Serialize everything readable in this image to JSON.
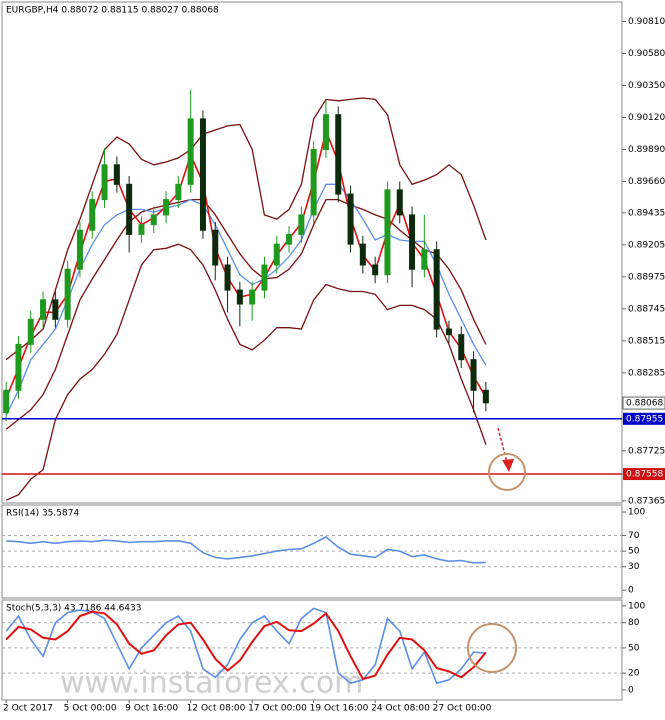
{
  "chart_data": [
    {
      "type": "candlestick",
      "title": "EURGBP,H4  0.88072 0.88115 0.88027 0.88068",
      "categories": [
        "2 Oct 2017",
        null,
        null,
        null,
        null,
        "5 Oct 00:00",
        null,
        null,
        null,
        null,
        "9 Oct 16:00",
        null,
        null,
        null,
        null,
        "12 Oct 08:00",
        null,
        null,
        null,
        null,
        "17 Oct 00:00",
        null,
        null,
        null,
        null,
        "19 Oct 16:00",
        null,
        null,
        null,
        null,
        "24 Oct 08:00",
        null,
        null,
        null,
        null,
        "27 Oct 00:00",
        null,
        null,
        null,
        null
      ],
      "open": [
        0.88,
        0.8816,
        0.8849,
        0.8867,
        0.8881,
        0.8867,
        0.8903,
        0.8931,
        0.8953,
        0.8978,
        0.8964,
        0.8928,
        0.8935,
        0.8942,
        0.8953,
        0.8964,
        0.9011,
        0.8931,
        0.8906,
        0.8888,
        0.8878,
        0.8888,
        0.8906,
        0.8921,
        0.8928,
        0.8942,
        0.8989,
        0.9014,
        0.8957,
        0.8921,
        0.8906,
        0.8899,
        0.896,
        0.8942,
        0.8903,
        0.8917,
        0.886,
        0.8856,
        0.8838,
        0.8816
      ],
      "high": [
        0.8822,
        0.8855,
        0.8873,
        0.8887,
        0.8887,
        0.8909,
        0.8937,
        0.8959,
        0.899,
        0.8984,
        0.897,
        0.8941,
        0.8948,
        0.8959,
        0.897,
        0.9032,
        0.9017,
        0.8937,
        0.8912,
        0.8894,
        0.8894,
        0.8912,
        0.8927,
        0.8934,
        0.8948,
        0.8995,
        0.9025,
        0.902,
        0.8963,
        0.8927,
        0.8912,
        0.8966,
        0.8966,
        0.8948,
        0.8942,
        0.8923,
        0.8866,
        0.8862,
        0.8844,
        0.8822
      ],
      "low": [
        0.8794,
        0.881,
        0.8843,
        0.8861,
        0.8861,
        0.8861,
        0.8897,
        0.8925,
        0.8947,
        0.8958,
        0.8915,
        0.8922,
        0.8929,
        0.8936,
        0.8947,
        0.8958,
        0.8925,
        0.8895,
        0.8872,
        0.8862,
        0.8866,
        0.8882,
        0.89,
        0.8915,
        0.8922,
        0.8936,
        0.8983,
        0.8951,
        0.8915,
        0.89,
        0.8893,
        0.8893,
        0.8936,
        0.889,
        0.8897,
        0.8854,
        0.885,
        0.8832,
        0.88,
        0.8801
      ],
      "close": [
        0.8816,
        0.8849,
        0.8867,
        0.8881,
        0.8867,
        0.8903,
        0.8931,
        0.8953,
        0.8978,
        0.8964,
        0.8928,
        0.8935,
        0.8942,
        0.8953,
        0.8964,
        0.9011,
        0.8931,
        0.8906,
        0.8888,
        0.8878,
        0.8888,
        0.8906,
        0.8921,
        0.8928,
        0.8942,
        0.8989,
        0.9014,
        0.8957,
        0.8921,
        0.8906,
        0.8899,
        0.896,
        0.8942,
        0.8903,
        0.8917,
        0.886,
        0.8856,
        0.8838,
        0.8816,
        0.8807
      ],
      "up_color": "#1f9a1f",
      "down_color": "#0d2a0d",
      "series": [
        {
          "color": "#7a1010",
          "values": [
            0.8838,
            0.8845,
            0.8852,
            0.886,
            0.8888,
            0.8917,
            0.8939,
            0.8964,
            0.8989,
            0.8998,
            0.8993,
            0.8982,
            0.8978,
            0.898,
            0.8983,
            0.8989,
            0.9,
            0.9003,
            0.9006,
            0.9007,
            0.8989,
            0.8942,
            0.8939,
            0.8946,
            0.8964,
            0.9011,
            0.9025,
            0.9024,
            0.9025,
            0.9026,
            0.9025,
            0.9014,
            0.8978,
            0.8964,
            0.8967,
            0.8971,
            0.8978,
            0.8971,
            0.8949,
            0.8924
          ]
        },
        {
          "color": "#7a1010",
          "values": [
            0.8788,
            0.8795,
            0.8802,
            0.8813,
            0.8831,
            0.8856,
            0.8881,
            0.8896,
            0.891,
            0.8924,
            0.8937,
            0.8944,
            0.8947,
            0.8949,
            0.8951,
            0.8953,
            0.8953,
            0.8942,
            0.8928,
            0.8914,
            0.8903,
            0.8896,
            0.8897,
            0.8903,
            0.8914,
            0.8935,
            0.8953,
            0.8953,
            0.8949,
            0.8946,
            0.8942,
            0.8939,
            0.8931,
            0.8924,
            0.8917,
            0.8914,
            0.8903,
            0.8888,
            0.8867,
            0.8849
          ]
        },
        {
          "color": "#7a1010",
          "values": [
            0.8737,
            0.8741,
            0.8752,
            0.8759,
            0.8795,
            0.8813,
            0.8824,
            0.8831,
            0.8842,
            0.8856,
            0.8881,
            0.8906,
            0.8917,
            0.8918,
            0.8921,
            0.8917,
            0.8906,
            0.8888,
            0.8867,
            0.8849,
            0.8845,
            0.8852,
            0.8861,
            0.8861,
            0.886,
            0.8881,
            0.8892,
            0.8889,
            0.8887,
            0.8887,
            0.8885,
            0.8874,
            0.8877,
            0.8877,
            0.8874,
            0.8867,
            0.8849,
            0.8824,
            0.8802,
            0.8777
          ]
        },
        {
          "color": "#5b8fe6",
          "values": [
            0.8798,
            0.8816,
            0.8838,
            0.8849,
            0.886,
            0.8881,
            0.8903,
            0.8921,
            0.8935,
            0.8942,
            0.8946,
            0.8946,
            0.8944,
            0.8947,
            0.8949,
            0.8953,
            0.8949,
            0.8935,
            0.8917,
            0.8899,
            0.8892,
            0.8896,
            0.8903,
            0.8912,
            0.8924,
            0.8946,
            0.8964,
            0.8964,
            0.8953,
            0.8939,
            0.8924,
            0.8928,
            0.8924,
            0.8923,
            0.8923,
            0.8906,
            0.8885,
            0.8867,
            0.8849,
            0.8834
          ]
        },
        {
          "color": "#e01010",
          "values": [
            0.881,
            0.8832,
            0.8855,
            0.8872,
            0.8872,
            0.8885,
            0.8915,
            0.8942,
            0.8966,
            0.8968,
            0.8946,
            0.8935,
            0.894,
            0.8948,
            0.8958,
            0.8985,
            0.8965,
            0.8918,
            0.8897,
            0.8883,
            0.8885,
            0.8897,
            0.8913,
            0.8925,
            0.8936,
            0.8966,
            0.9002,
            0.898,
            0.894,
            0.8913,
            0.8902,
            0.893,
            0.895,
            0.8922,
            0.891,
            0.8885,
            0.8858,
            0.8846,
            0.8826,
            0.8811
          ]
        }
      ],
      "levels": [
        {
          "value": 0.87955,
          "label": "0.87955",
          "color": "#0000c8"
        },
        {
          "value": 0.87558,
          "label": "0.87558",
          "color": "#d01010"
        }
      ],
      "last_price": {
        "value": 0.88068,
        "label": "0.88068"
      },
      "ylim": [
        0.8735,
        0.9095
      ],
      "yticks": [
        {
          "value": 0.9081,
          "label": "0.90810"
        },
        {
          "value": 0.9058,
          "label": "0.90580"
        },
        {
          "value": 0.9035,
          "label": "0.90350"
        },
        {
          "value": 0.9012,
          "label": "0.90120"
        },
        {
          "value": 0.8989,
          "label": "0.89890"
        },
        {
          "value": 0.8966,
          "label": "0.89660"
        },
        {
          "value": 0.89435,
          "label": "0.89435"
        },
        {
          "value": 0.89205,
          "label": "0.89205"
        },
        {
          "value": 0.88975,
          "label": "0.88975"
        },
        {
          "value": 0.88745,
          "label": "0.88745"
        },
        {
          "value": 0.88515,
          "label": "0.88515"
        },
        {
          "value": 0.88285,
          "label": "0.88285"
        },
        {
          "value": 0.87725,
          "label": "0.87725"
        },
        {
          "value": 0.87365,
          "label": "0.87365"
        }
      ],
      "grid": false,
      "watermark": "www.instaforex.com"
    },
    {
      "type": "line",
      "title": "RSI(14) 35.5874",
      "series": [
        {
          "color": "#5b8fe6",
          "values": [
            63,
            62,
            60,
            62,
            60,
            62,
            63,
            62,
            64,
            63,
            61,
            62,
            62,
            63,
            63,
            60,
            48,
            42,
            40,
            42,
            44,
            47,
            50,
            52,
            53,
            60,
            68,
            55,
            46,
            44,
            42,
            52,
            50,
            43,
            45,
            40,
            37,
            38,
            35,
            35.6
          ]
        }
      ],
      "ylim": [
        -10,
        109
      ],
      "yticks": [
        0,
        30,
        50,
        70,
        100
      ],
      "grid": true
    },
    {
      "type": "line",
      "title": "Stoch(5,3,3) 43.7186 44.6433",
      "series": [
        {
          "color": "#5b8fe6",
          "values": [
            70,
            88,
            60,
            40,
            80,
            92,
            95,
            93,
            85,
            55,
            25,
            50,
            65,
            80,
            88,
            70,
            25,
            15,
            30,
            60,
            80,
            88,
            70,
            55,
            85,
            97,
            92,
            20,
            8,
            12,
            30,
            85,
            70,
            25,
            45,
            8,
            12,
            25,
            45,
            43.7
          ]
        },
        {
          "color": "#e01010",
          "values": [
            60,
            75,
            72,
            62,
            60,
            70,
            88,
            93,
            91,
            78,
            55,
            43,
            47,
            65,
            78,
            80,
            60,
            37,
            23,
            35,
            57,
            76,
            81,
            71,
            70,
            79,
            91,
            70,
            40,
            13,
            17,
            42,
            62,
            60,
            47,
            26,
            22,
            15,
            27,
            44.6
          ]
        }
      ],
      "ylim": [
        -12,
        107
      ],
      "yticks": [
        0,
        20,
        50,
        80,
        100
      ],
      "grid": true
    }
  ]
}
